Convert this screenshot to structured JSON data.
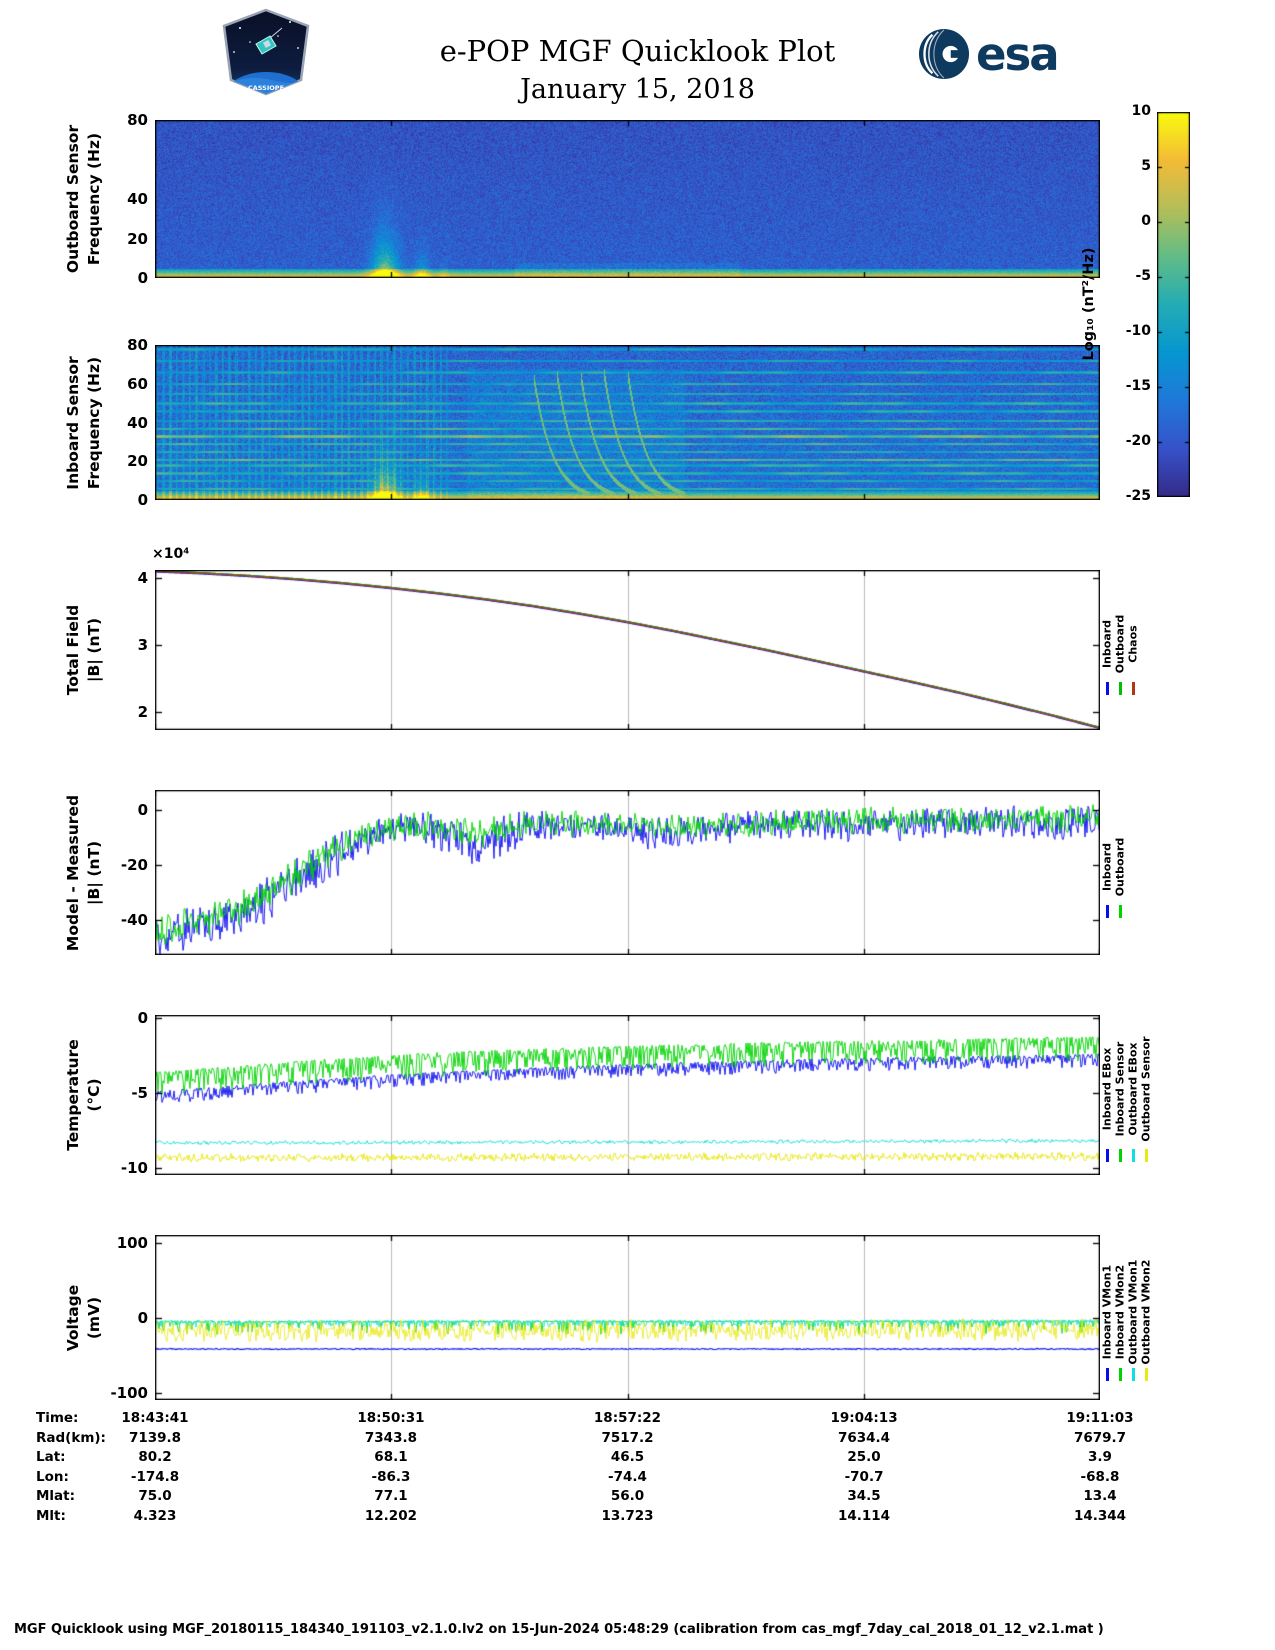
{
  "header": {
    "title": "e-POP MGF Quicklook Plot",
    "date": "January 15, 2018",
    "esa_label": "esa",
    "cassiope_label": "CASSIOPE"
  },
  "colorbar": {
    "label": "Log₁₀ (nT²/Hz)",
    "max": 10,
    "min": -25,
    "ticks": [
      10,
      5,
      0,
      -5,
      -10,
      -15,
      -20,
      -25
    ]
  },
  "time_axis": {
    "fractions": [
      0,
      0.2497,
      0.5,
      0.7503,
      1
    ],
    "labels": [
      "18:43:41",
      "18:50:31",
      "18:57:22",
      "19:04:13",
      "19:11:03"
    ]
  },
  "chart_data": [
    {
      "id": "outboard",
      "type": "heatmap",
      "ylabel_lines": [
        "Outboard Sensor",
        "Frequency (Hz)"
      ],
      "ylim": [
        0,
        80
      ],
      "yticks": [
        80,
        40,
        20,
        0
      ],
      "value_range": [
        -25,
        10
      ],
      "background_level": -19,
      "noise_level": 3,
      "low_band": {
        "freq_max": 3,
        "peak_level": 8
      },
      "bursts": [
        {
          "t": 0.243,
          "sigma": 0.01,
          "strength": 26,
          "fscale": 13
        },
        {
          "t": 0.282,
          "sigma": 0.006,
          "strength": 15,
          "fscale": 7
        },
        {
          "t": 0.305,
          "sigma": 0.004,
          "strength": 8,
          "fscale": 4
        }
      ],
      "patch": {
        "t0": 0.38,
        "t1": 0.62,
        "fmax": 8,
        "boost": 4
      }
    },
    {
      "id": "inboard",
      "type": "heatmap",
      "ylabel_lines": [
        "Inboard Sensor",
        "Frequency (Hz)"
      ],
      "ylim": [
        0,
        80
      ],
      "yticks": [
        80,
        60,
        40,
        20,
        0
      ],
      "value_range": [
        -25,
        10
      ],
      "background_level": -17,
      "noise_level": 4,
      "low_band": {
        "freq_max": 3,
        "peak_level": 8
      },
      "bursts": [
        {
          "t": 0.243,
          "sigma": 0.01,
          "strength": 28,
          "fscale": 11
        },
        {
          "t": 0.282,
          "sigma": 0.006,
          "strength": 16,
          "fscale": 7
        }
      ],
      "hlines": [
        [
          6,
          -7
        ],
        [
          10,
          -8
        ],
        [
          14,
          -6.5
        ],
        [
          18,
          -7
        ],
        [
          21,
          -4
        ],
        [
          25,
          -7.5
        ],
        [
          29,
          -6
        ],
        [
          33,
          -2.5
        ],
        [
          37,
          -5.5
        ],
        [
          41,
          -7
        ],
        [
          46,
          -8
        ],
        [
          50,
          -7
        ],
        [
          55,
          -8
        ],
        [
          60,
          -7.5
        ],
        [
          66,
          -9
        ],
        [
          72,
          -9.5
        ],
        [
          78,
          -10
        ]
      ],
      "stripes": {
        "t_max": 0.31,
        "freq": 900,
        "duty": 0.3,
        "boost": 5
      },
      "chirps": [
        {
          "t0": 0.4
        },
        {
          "t0": 0.425
        },
        {
          "t0": 0.45
        },
        {
          "t0": 0.475
        },
        {
          "t0": 0.5
        }
      ],
      "chirp_params": {
        "f0": 65,
        "tau": 0.02,
        "dur": 0.06
      },
      "patch": {
        "t0": 0.33,
        "t1": 0.56,
        "fmax": 68,
        "boost": 4
      }
    },
    {
      "id": "total",
      "type": "line",
      "ylabel_lines": [
        "Total Field",
        "|B| (nT)"
      ],
      "offset_label": "×10⁴",
      "ylim": [
        17300,
        41200
      ],
      "yticks": [
        40000,
        30000,
        20000
      ],
      "ytick_labels": [
        "4",
        "3",
        "2"
      ],
      "series": [
        {
          "name": "Inboard",
          "color": "#0b0bf0",
          "lw": 2.4,
          "mean": [
            [
              0,
              41000
            ],
            [
              0.05,
              40700
            ],
            [
              0.1,
              40300
            ],
            [
              0.15,
              39800
            ],
            [
              0.2,
              39200
            ],
            [
              0.25,
              38500
            ],
            [
              0.3,
              37700
            ],
            [
              0.35,
              36800
            ],
            [
              0.4,
              35800
            ],
            [
              0.45,
              34650
            ],
            [
              0.5,
              33400
            ],
            [
              0.55,
              32050
            ],
            [
              0.6,
              30600
            ],
            [
              0.65,
              29150
            ],
            [
              0.7,
              27600
            ],
            [
              0.75,
              26050
            ],
            [
              0.8,
              24500
            ],
            [
              0.85,
              22900
            ],
            [
              0.9,
              21200
            ],
            [
              0.95,
              19450
            ],
            [
              1,
              17600
            ]
          ]
        },
        {
          "name": "Outboard",
          "color": "#00c000",
          "lw": 1.7,
          "mean_offset": 60
        },
        {
          "name": "Chaos",
          "color": "#b33517",
          "lw": 1.3,
          "mean_offset": 15
        }
      ]
    },
    {
      "id": "model",
      "type": "line",
      "ylabel_lines": [
        "Model - Measured",
        "|B| (nT)"
      ],
      "ylim": [
        -52.7,
        7.3
      ],
      "yticks": [
        0,
        -20,
        -40
      ],
      "ytick_labels": [
        "0",
        "-20",
        "-40"
      ],
      "series": [
        {
          "name": "Inboard",
          "color": "#0b0bf0",
          "lw": 0.9,
          "mode": "sym",
          "mean": [
            [
              0,
              -46
            ],
            [
              0.03,
              -44
            ],
            [
              0.06,
              -41
            ],
            [
              0.09,
              -37
            ],
            [
              0.12,
              -32
            ],
            [
              0.15,
              -26
            ],
            [
              0.18,
              -19
            ],
            [
              0.21,
              -12
            ],
            [
              0.24,
              -8
            ],
            [
              0.27,
              -6
            ],
            [
              0.3,
              -8
            ],
            [
              0.33,
              -12
            ],
            [
              0.345,
              -14
            ],
            [
              0.36,
              -10
            ],
            [
              0.39,
              -7
            ],
            [
              0.42,
              -6
            ],
            [
              0.46,
              -6
            ],
            [
              0.5,
              -7
            ],
            [
              0.54,
              -9
            ],
            [
              0.58,
              -7
            ],
            [
              0.62,
              -6
            ],
            [
              0.66,
              -5
            ],
            [
              0.7,
              -5
            ],
            [
              0.75,
              -6
            ],
            [
              0.8,
              -5
            ],
            [
              0.85,
              -5
            ],
            [
              0.9,
              -4
            ],
            [
              0.95,
              -5
            ],
            [
              1,
              -4
            ]
          ],
          "amp": [
            [
              0,
              6
            ],
            [
              0.1,
              7
            ],
            [
              0.2,
              6
            ],
            [
              0.25,
              4
            ],
            [
              0.3,
              5
            ],
            [
              0.35,
              6
            ],
            [
              0.45,
              4
            ],
            [
              0.55,
              5
            ],
            [
              0.65,
              4
            ],
            [
              0.8,
              5
            ],
            [
              1,
              5
            ]
          ]
        },
        {
          "name": "Outboard",
          "color": "#00d400",
          "lw": 0.9,
          "mode": "sym",
          "mean": [
            [
              0,
              -44
            ],
            [
              0.03,
              -42
            ],
            [
              0.06,
              -39
            ],
            [
              0.09,
              -35
            ],
            [
              0.12,
              -30
            ],
            [
              0.15,
              -24
            ],
            [
              0.18,
              -17
            ],
            [
              0.21,
              -11
            ],
            [
              0.24,
              -7
            ],
            [
              0.27,
              -5
            ],
            [
              0.3,
              -6
            ],
            [
              0.33,
              -8
            ],
            [
              0.345,
              -9
            ],
            [
              0.36,
              -7
            ],
            [
              0.4,
              -5
            ],
            [
              0.46,
              -5
            ],
            [
              0.52,
              -6
            ],
            [
              0.58,
              -6
            ],
            [
              0.64,
              -5
            ],
            [
              0.7,
              -4
            ],
            [
              0.78,
              -4
            ],
            [
              0.86,
              -4
            ],
            [
              0.93,
              -3
            ],
            [
              1,
              -3
            ]
          ],
          "amp": [
            [
              0,
              5
            ],
            [
              0.15,
              5
            ],
            [
              0.3,
              4
            ],
            [
              0.5,
              3.5
            ],
            [
              0.7,
              4
            ],
            [
              1,
              4
            ]
          ]
        }
      ]
    },
    {
      "id": "temp",
      "type": "line",
      "ylabel_lines": [
        "Temperature",
        "(°C)"
      ],
      "ylim": [
        -10.5,
        0.2
      ],
      "yticks": [
        0,
        -5,
        -10
      ],
      "ytick_labels": [
        "0",
        "-5",
        "-10"
      ],
      "series": [
        {
          "name": "Inboard EBox",
          "color": "#0b0bf0",
          "lw": 0.9,
          "mode": "down",
          "mean": [
            [
              0,
              -4.9
            ],
            [
              0.15,
              -4.2
            ],
            [
              0.3,
              -3.6
            ],
            [
              0.45,
              -3.2
            ],
            [
              0.6,
              -2.9
            ],
            [
              0.75,
              -2.65
            ],
            [
              0.9,
              -2.5
            ],
            [
              1,
              -2.4
            ]
          ],
          "amp": 0.5
        },
        {
          "name": "Inboard Sensor",
          "color": "#00d400",
          "lw": 0.9,
          "mode": "down",
          "mean": [
            [
              0,
              -3.6
            ],
            [
              0.15,
              -2.9
            ],
            [
              0.3,
              -2.3
            ],
            [
              0.45,
              -1.95
            ],
            [
              0.6,
              -1.7
            ],
            [
              0.75,
              -1.5
            ],
            [
              0.9,
              -1.35
            ],
            [
              1,
              -1.25
            ]
          ],
          "amp": 0.9
        },
        {
          "name": "Outboard EBox",
          "color": "#12dede",
          "lw": 0.9,
          "mode": "sym",
          "mean": [
            [
              0,
              -8.35
            ],
            [
              0.5,
              -8.3
            ],
            [
              1,
              -8.2
            ]
          ],
          "amp": 0.1
        },
        {
          "name": "Outboard Sensor",
          "color": "#e8e812",
          "lw": 0.9,
          "mode": "sym",
          "mean": [
            [
              0,
              -9.35
            ],
            [
              0.5,
              -9.3
            ],
            [
              1,
              -9.25
            ]
          ],
          "amp": 0.22
        }
      ]
    },
    {
      "id": "volt",
      "type": "line",
      "ylabel_lines": [
        "Voltage",
        "(mV)"
      ],
      "ylim": [
        -110,
        110
      ],
      "yticks": [
        100,
        0,
        -100
      ],
      "ytick_labels": [
        "100",
        "0",
        "-100"
      ],
      "series": [
        {
          "name": "Inboard VMon1",
          "color": "#0b0bf0",
          "lw": 1.1,
          "mode": "sym",
          "mean": [
            [
              0,
              -42
            ],
            [
              1,
              -42
            ]
          ],
          "amp": 0.6
        },
        {
          "name": "Inboard VMon2",
          "color": "#00d400",
          "lw": 0.8,
          "mode": "spike",
          "mean": [
            [
              0,
              -5
            ],
            [
              1,
              -4
            ]
          ],
          "amp": 18
        },
        {
          "name": "Outboard VMon1",
          "color": "#12dede",
          "lw": 0.8,
          "mode": "down",
          "mean": [
            [
              0,
              -4
            ],
            [
              1,
              -3
            ]
          ],
          "amp": 5
        },
        {
          "name": "Outboard VMon2",
          "color": "#e8e812",
          "lw": 0.8,
          "mode": "sym",
          "mean": [
            [
              0,
              -18
            ],
            [
              1,
              -17
            ]
          ],
          "amp": 12
        }
      ]
    }
  ],
  "table": {
    "rows": [
      {
        "label": "Time:",
        "values": [
          "18:43:41",
          "18:50:31",
          "18:57:22",
          "19:04:13",
          "19:11:03"
        ]
      },
      {
        "label": "Rad(km):",
        "values": [
          "7139.8",
          "7343.8",
          "7517.2",
          "7634.4",
          "7679.7"
        ]
      },
      {
        "label": "Lat:",
        "values": [
          "80.2",
          "68.1",
          "46.5",
          "25.0",
          "3.9"
        ]
      },
      {
        "label": "Lon:",
        "values": [
          "-174.8",
          "-86.3",
          "-74.4",
          "-70.7",
          "-68.8"
        ]
      },
      {
        "label": "Mlat:",
        "values": [
          "75.0",
          "77.1",
          "56.0",
          "34.5",
          "13.4"
        ]
      },
      {
        "label": "Mlt:",
        "values": [
          "4.323",
          "12.202",
          "13.723",
          "14.114",
          "14.344"
        ]
      }
    ]
  },
  "footer": "MGF Quicklook using MGF_20180115_184340_191103_v2.1.0.lv2 on 15-Jun-2024 05:48:29 (calibration from cas_mgf_7day_cal_2018_01_12_v2.1.mat )"
}
